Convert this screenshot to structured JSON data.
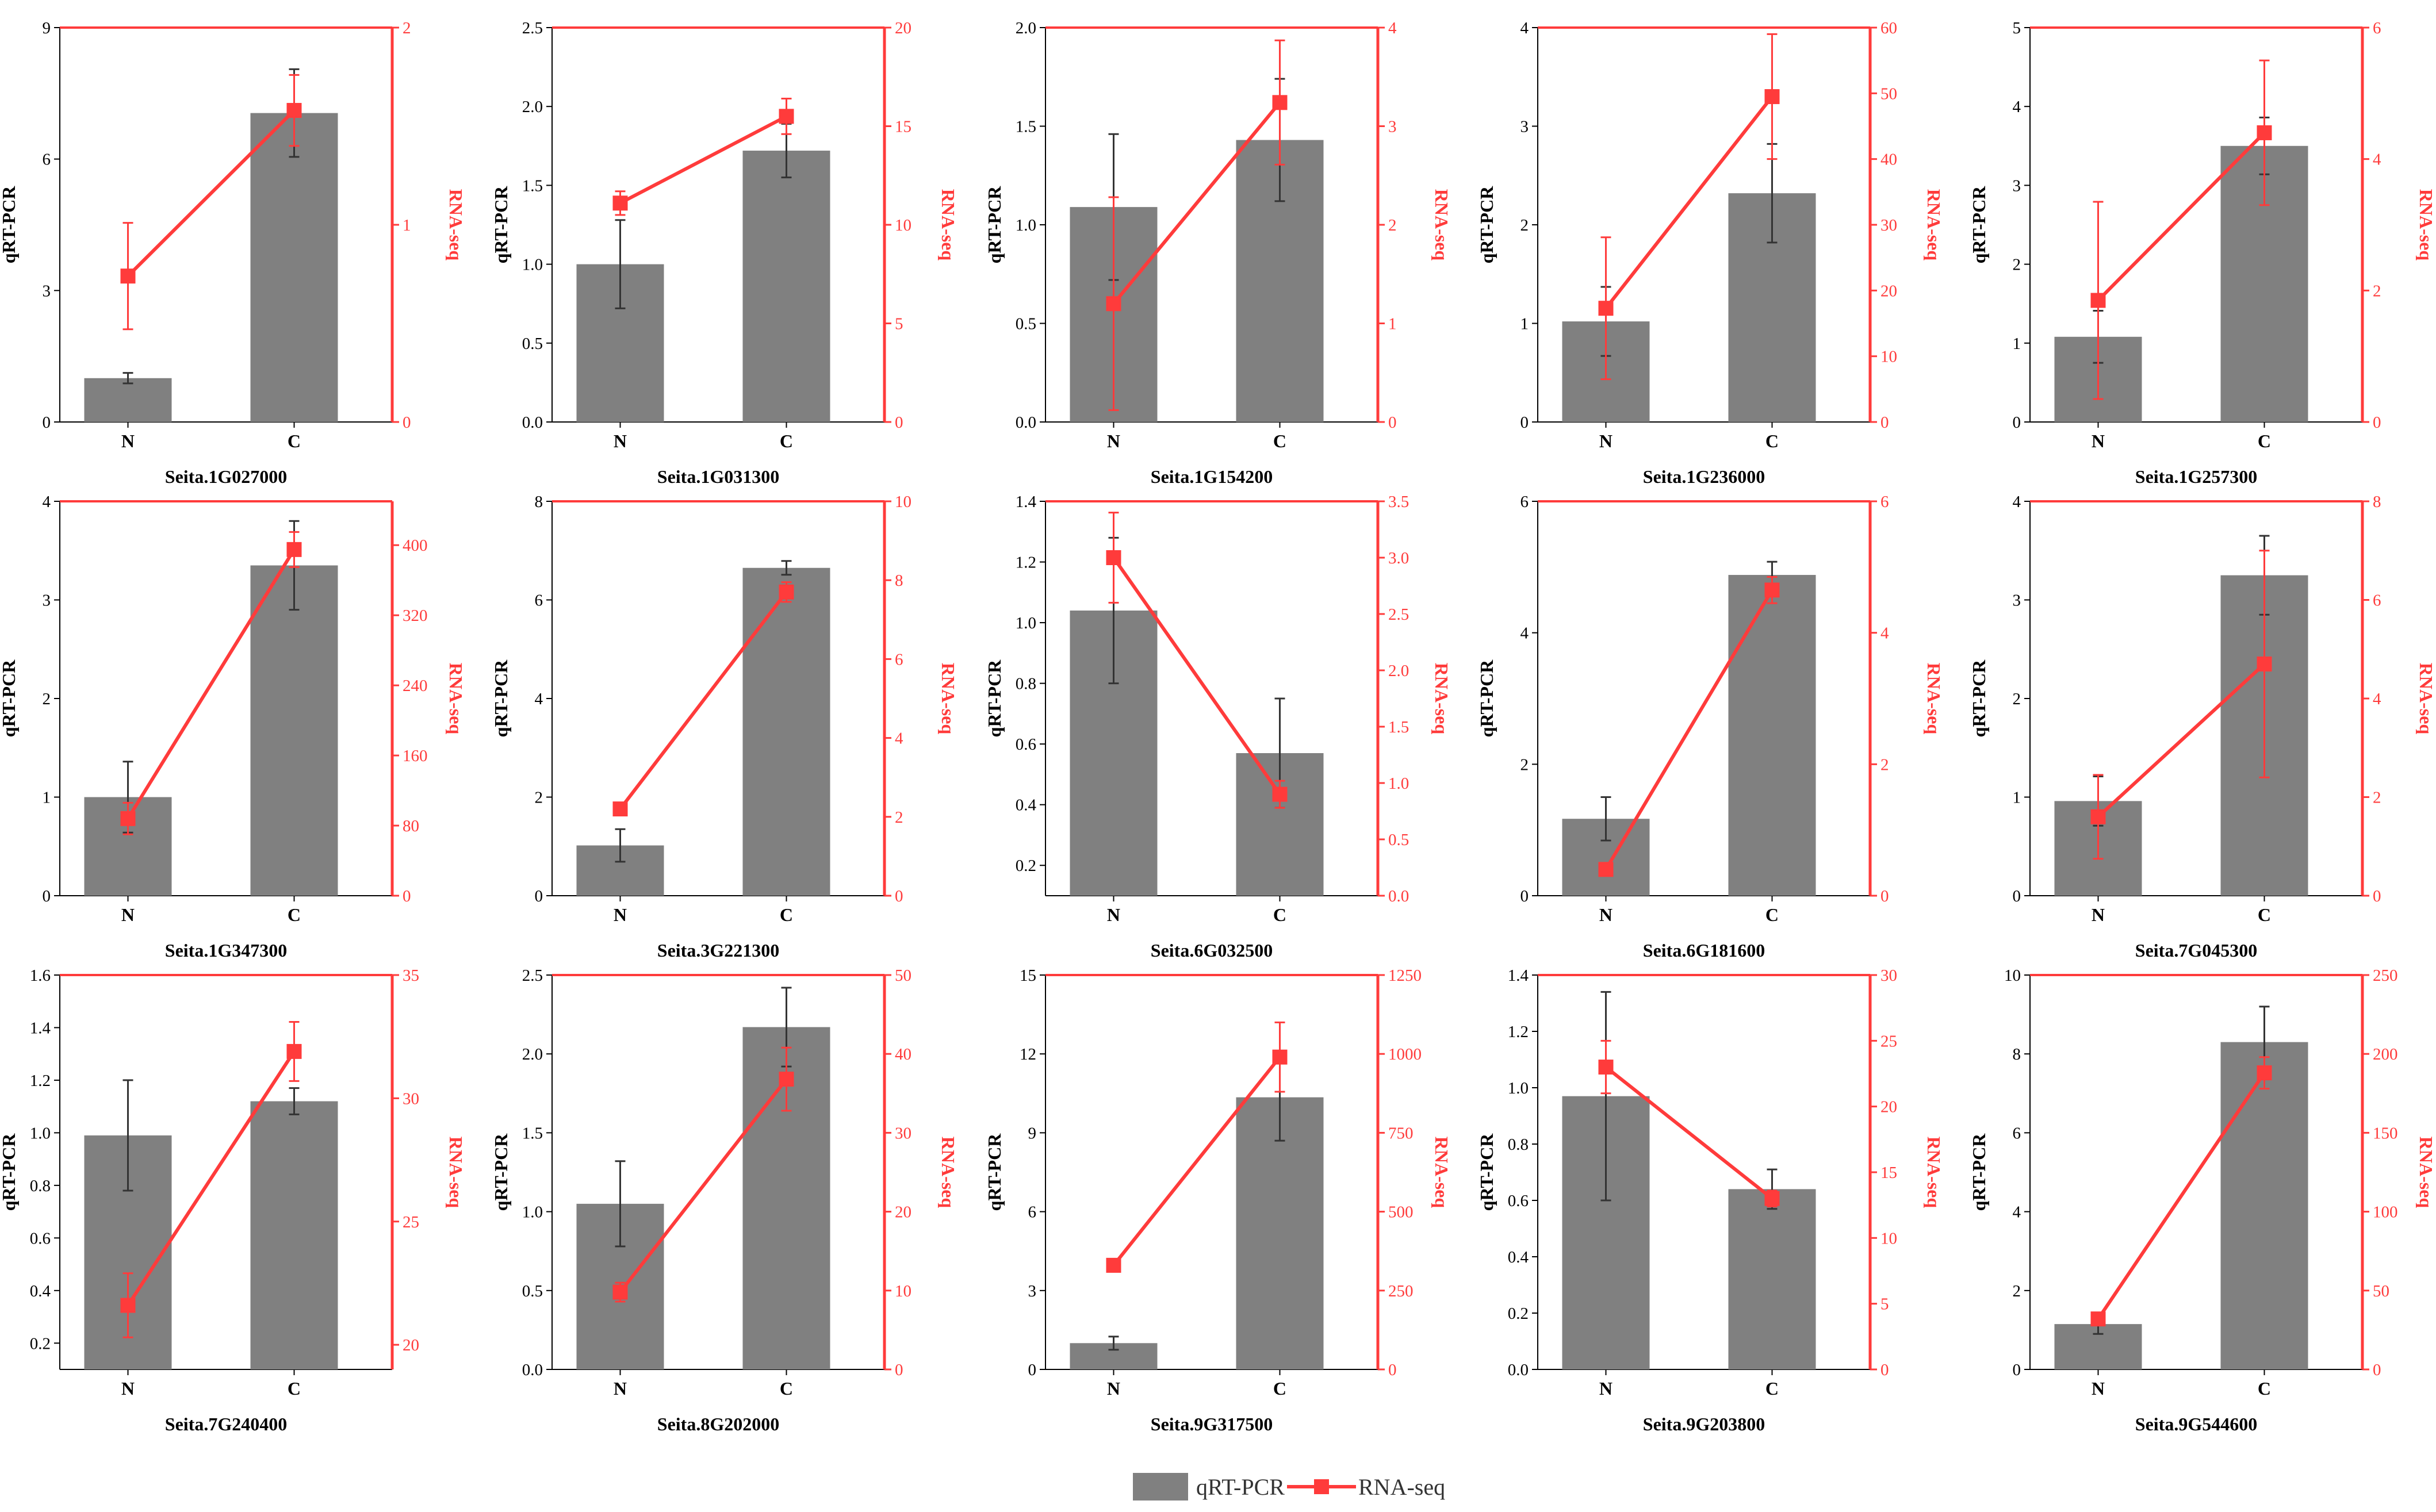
{
  "legend": {
    "bar_label": "qRT-PCR",
    "line_label": "RNA-seq"
  },
  "colors": {
    "bar": "#808080",
    "line": "#ff3b3b",
    "axis": "#000000",
    "error_bar": "#333333"
  },
  "chart_data": [
    {
      "type": "bar+line",
      "title": "Seita.1G027000",
      "categories": [
        "N",
        "C"
      ],
      "ylabel": "qRT-PCR",
      "y2label": "RNA-seq",
      "ylim": [
        0,
        9
      ],
      "yticks": [
        "0",
        "3",
        "6",
        "9"
      ],
      "y2lim": [
        0,
        2
      ],
      "y2ticks": [
        "0",
        "1",
        "2"
      ],
      "qpcr": [
        1.0,
        7.05
      ],
      "qpcr_err": [
        0.12,
        1.0
      ],
      "rnaseq": [
        0.74,
        1.58
      ],
      "rnaseq_err": [
        0.27,
        0.18
      ]
    },
    {
      "type": "bar+line",
      "title": "Seita.1G031300",
      "categories": [
        "N",
        "C"
      ],
      "ylabel": "qRT-PCR",
      "y2label": "RNA-seq",
      "ylim": [
        0,
        2.5
      ],
      "yticks": [
        "0.0",
        "0.5",
        "1.0",
        "1.5",
        "2.0",
        "2.5"
      ],
      "y2lim": [
        0,
        20
      ],
      "y2ticks": [
        "0",
        "5",
        "10",
        "15",
        "20"
      ],
      "qpcr": [
        1.0,
        1.72
      ],
      "qpcr_err": [
        0.28,
        0.17
      ],
      "rnaseq": [
        11.1,
        15.5
      ],
      "rnaseq_err": [
        0.6,
        0.9
      ]
    },
    {
      "type": "bar+line",
      "title": "Seita.1G154200",
      "categories": [
        "N",
        "C"
      ],
      "ylabel": "qRT-PCR",
      "y2label": "RNA-seq",
      "ylim": [
        0,
        2.0
      ],
      "yticks": [
        "0.0",
        "0.5",
        "1.0",
        "1.5",
        "2.0"
      ],
      "y2lim": [
        0,
        4
      ],
      "y2ticks": [
        "0",
        "1",
        "2",
        "3",
        "4"
      ],
      "qpcr": [
        1.09,
        1.43
      ],
      "qpcr_err": [
        0.37,
        0.31
      ],
      "rnaseq": [
        1.2,
        3.24
      ],
      "rnaseq_err": [
        1.08,
        0.63
      ]
    },
    {
      "type": "bar+line",
      "title": "Seita.1G236000",
      "categories": [
        "N",
        "C"
      ],
      "ylabel": "qRT-PCR",
      "y2label": "RNA-seq",
      "ylim": [
        0,
        4
      ],
      "yticks": [
        "0",
        "1",
        "2",
        "3",
        "4"
      ],
      "y2lim": [
        0,
        60
      ],
      "y2ticks": [
        "0",
        "10",
        "20",
        "30",
        "40",
        "50",
        "60"
      ],
      "qpcr": [
        1.02,
        2.32
      ],
      "qpcr_err": [
        0.35,
        0.5
      ],
      "rnaseq": [
        17.3,
        49.5
      ],
      "rnaseq_err": [
        10.8,
        9.5
      ]
    },
    {
      "type": "bar+line",
      "title": "Seita.1G257300",
      "categories": [
        "N",
        "C"
      ],
      "ylabel": "qRT-PCR",
      "y2label": "RNA-seq",
      "ylim": [
        0,
        5
      ],
      "yticks": [
        "0",
        "1",
        "2",
        "3",
        "4",
        "5"
      ],
      "y2lim": [
        0,
        6
      ],
      "y2ticks": [
        "0",
        "2",
        "4",
        "6"
      ],
      "qpcr": [
        1.08,
        3.5
      ],
      "qpcr_err": [
        0.33,
        0.36
      ],
      "rnaseq": [
        1.85,
        4.4
      ],
      "rnaseq_err": [
        1.5,
        1.1
      ]
    },
    {
      "type": "bar+line",
      "title": "Seita.1G347300",
      "categories": [
        "N",
        "C"
      ],
      "ylabel": "qRT-PCR",
      "y2label": "RNA-seq",
      "ylim": [
        0,
        4
      ],
      "yticks": [
        "0",
        "1",
        "2",
        "3",
        "4"
      ],
      "y2lim": [
        0,
        450
      ],
      "y2ticks": [
        "0",
        "80",
        "160",
        "240",
        "320",
        "400"
      ],
      "qpcr": [
        1.0,
        3.35
      ],
      "qpcr_err": [
        0.36,
        0.45
      ],
      "rnaseq": [
        88,
        395
      ],
      "rnaseq_err": [
        18,
        20
      ]
    },
    {
      "type": "bar+line",
      "title": "Seita.3G221300",
      "categories": [
        "N",
        "C"
      ],
      "ylabel": "qRT-PCR",
      "y2label": "RNA-seq",
      "ylim": [
        0,
        8
      ],
      "yticks": [
        "0",
        "2",
        "4",
        "6",
        "8"
      ],
      "y2lim": [
        0,
        10
      ],
      "y2ticks": [
        "0",
        "2",
        "4",
        "6",
        "8",
        "10"
      ],
      "qpcr": [
        1.02,
        6.65
      ],
      "qpcr_err": [
        0.33,
        0.14
      ],
      "rnaseq": [
        2.2,
        7.7
      ],
      "rnaseq_err": [
        0.15,
        0.25
      ]
    },
    {
      "type": "bar+line",
      "title": "Seita.6G032500",
      "categories": [
        "N",
        "C"
      ],
      "ylabel": "qRT-PCR",
      "y2label": "RNA-seq",
      "ylim": [
        0.1,
        1.4
      ],
      "yticks": [
        "0.2",
        "0.4",
        "0.6",
        "0.8",
        "1.0",
        "1.2",
        "1.4"
      ],
      "y2lim": [
        0,
        3.5
      ],
      "y2ticks": [
        "0.0",
        "0.5",
        "1.0",
        "1.5",
        "2.0",
        "2.5",
        "3.0",
        "3.5"
      ],
      "qpcr": [
        1.04,
        0.57
      ],
      "qpcr_err": [
        0.24,
        0.18
      ],
      "rnaseq": [
        3.0,
        0.9
      ],
      "rnaseq_err": [
        0.4,
        0.12
      ]
    },
    {
      "type": "bar+line",
      "title": "Seita.6G181600",
      "categories": [
        "N",
        "C"
      ],
      "ylabel": "qRT-PCR",
      "y2label": "RNA-seq",
      "ylim": [
        0,
        6
      ],
      "yticks": [
        "0",
        "2",
        "4",
        "6"
      ],
      "y2lim": [
        0,
        6
      ],
      "y2ticks": [
        "0",
        "2",
        "4",
        "6"
      ],
      "qpcr": [
        1.17,
        4.88
      ],
      "qpcr_err": [
        0.33,
        0.2
      ],
      "rnaseq": [
        0.4,
        4.65
      ],
      "rnaseq_err": [
        0.05,
        0.2
      ]
    },
    {
      "type": "bar+line",
      "title": "Seita.7G045300",
      "categories": [
        "N",
        "C"
      ],
      "ylabel": "qRT-PCR",
      "y2label": "RNA-seq",
      "ylim": [
        0,
        4
      ],
      "yticks": [
        "0",
        "1",
        "2",
        "3",
        "4"
      ],
      "y2lim": [
        0,
        8
      ],
      "y2ticks": [
        "0",
        "2",
        "4",
        "6",
        "8"
      ],
      "qpcr": [
        0.96,
        3.25
      ],
      "qpcr_err": [
        0.25,
        0.4
      ],
      "rnaseq": [
        1.6,
        4.7
      ],
      "rnaseq_err": [
        0.85,
        2.3
      ]
    },
    {
      "type": "bar+line",
      "title": "Seita.7G240400",
      "categories": [
        "N",
        "C"
      ],
      "ylabel": "qRT-PCR",
      "y2label": "RNA-seq",
      "ylim": [
        0.1,
        1.6
      ],
      "yticks": [
        "0.2",
        "0.4",
        "0.6",
        "0.8",
        "1.0",
        "1.2",
        "1.4",
        "1.6"
      ],
      "y2lim": [
        19,
        35
      ],
      "y2ticks": [
        "20",
        "25",
        "30",
        "35"
      ],
      "qpcr": [
        0.99,
        1.12
      ],
      "qpcr_err": [
        0.21,
        0.05
      ],
      "rnaseq": [
        21.6,
        31.9
      ],
      "rnaseq_err": [
        1.3,
        1.2
      ]
    },
    {
      "type": "bar+line",
      "title": "Seita.8G202000",
      "categories": [
        "N",
        "C"
      ],
      "ylabel": "qRT-PCR",
      "y2label": "RNA-seq",
      "ylim": [
        0,
        2.5
      ],
      "yticks": [
        "0.0",
        "0.5",
        "1.0",
        "1.5",
        "2.0",
        "2.5"
      ],
      "y2lim": [
        0,
        50
      ],
      "y2ticks": [
        "0",
        "10",
        "20",
        "30",
        "40",
        "50"
      ],
      "qpcr": [
        1.05,
        2.17
      ],
      "qpcr_err": [
        0.27,
        0.25
      ],
      "rnaseq": [
        9.8,
        36.8
      ],
      "rnaseq_err": [
        1.2,
        4.0
      ]
    },
    {
      "type": "bar+line",
      "title": "Seita.9G317500",
      "categories": [
        "N",
        "C"
      ],
      "ylabel": "qRT-PCR",
      "y2label": "RNA-seq",
      "ylim": [
        0,
        15
      ],
      "yticks": [
        "0",
        "3",
        "6",
        "9",
        "12",
        "15"
      ],
      "y2lim": [
        0,
        1250
      ],
      "y2ticks": [
        "0",
        "250",
        "500",
        "750",
        "1000",
        "1250"
      ],
      "qpcr": [
        1.0,
        10.35
      ],
      "qpcr_err": [
        0.25,
        1.65
      ],
      "rnaseq": [
        330,
        990
      ],
      "rnaseq_err": [
        10,
        110
      ]
    },
    {
      "type": "bar+line",
      "title": "Seita.9G203800",
      "categories": [
        "N",
        "C"
      ],
      "ylabel": "qRT-PCR",
      "y2label": "RNA-seq",
      "ylim": [
        0,
        1.4
      ],
      "yticks": [
        "0.0",
        "0.2",
        "0.4",
        "0.6",
        "0.8",
        "1.0",
        "1.2",
        "1.4"
      ],
      "y2lim": [
        0,
        30
      ],
      "y2ticks": [
        "0",
        "5",
        "10",
        "15",
        "20",
        "25",
        "30"
      ],
      "qpcr": [
        0.97,
        0.64
      ],
      "qpcr_err": [
        0.37,
        0.07
      ],
      "rnaseq": [
        23.0,
        13.0
      ],
      "rnaseq_err": [
        2.0,
        0.6
      ]
    },
    {
      "type": "bar+line",
      "title": "Seita.9G544600",
      "categories": [
        "N",
        "C"
      ],
      "ylabel": "qRT-PCR",
      "y2label": "RNA-seq",
      "ylim": [
        0,
        10
      ],
      "yticks": [
        "0",
        "2",
        "4",
        "6",
        "8",
        "10"
      ],
      "y2lim": [
        0,
        250
      ],
      "y2ticks": [
        "0",
        "50",
        "100",
        "150",
        "200",
        "250"
      ],
      "qpcr": [
        1.15,
        8.3
      ],
      "qpcr_err": [
        0.25,
        0.9
      ],
      "rnaseq": [
        32,
        188
      ],
      "rnaseq_err": [
        4,
        10
      ]
    }
  ]
}
